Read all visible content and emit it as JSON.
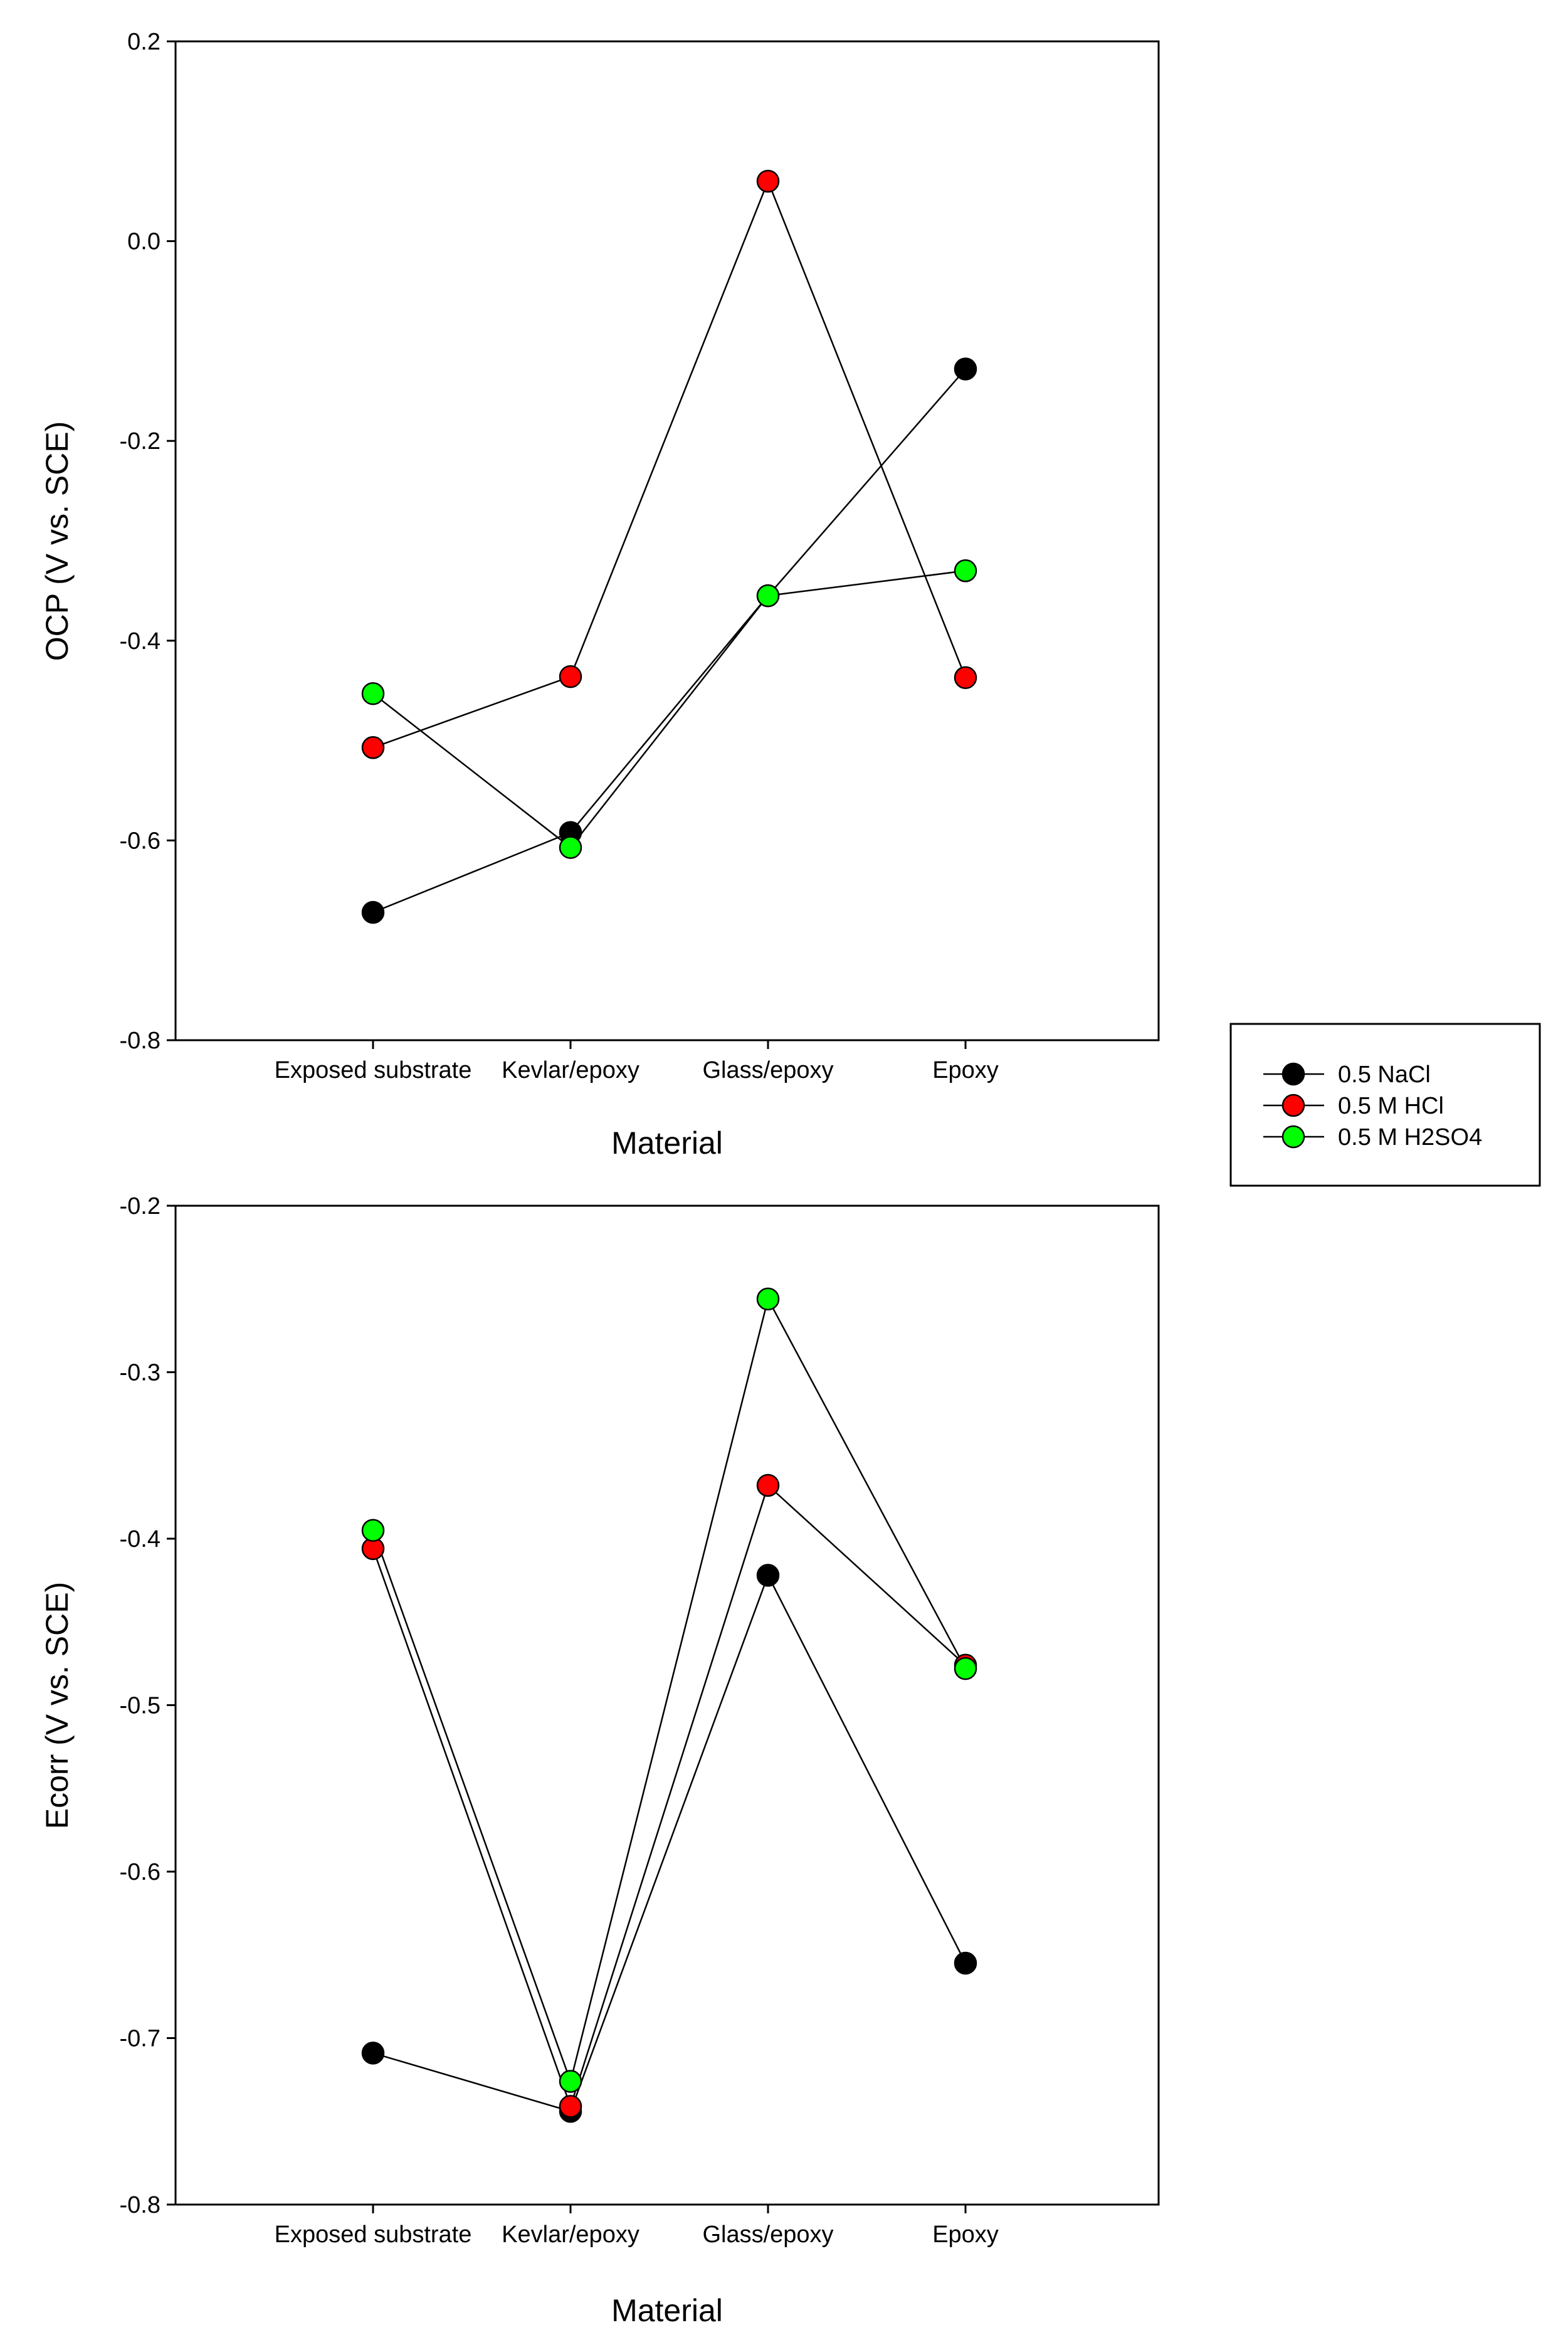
{
  "chart_data": [
    {
      "type": "line",
      "title": "",
      "xlabel": "Material",
      "ylabel": "OCP (V vs. SCE)",
      "categories": [
        "Exposed substrate",
        "Kevlar/epoxy",
        "Glass/epoxy",
        "Epoxy"
      ],
      "ylim": [
        -0.8,
        0.2
      ],
      "yticks": [
        "-0.8",
        "-0.6",
        "-0.4",
        "-0.2",
        "0.0",
        "0.2"
      ],
      "ytick_values": [
        -0.8,
        -0.6,
        -0.4,
        -0.2,
        0.0,
        0.2
      ],
      "series": [
        {
          "name": "0.5 NaCl",
          "color": "#000000",
          "values": [
            -0.672,
            -0.592,
            -0.355,
            -0.128
          ]
        },
        {
          "name": "0.5 M HCl",
          "color": "#ff0000",
          "values": [
            -0.507,
            -0.436,
            0.06,
            -0.437
          ]
        },
        {
          "name": "0.5 M H2SO4",
          "color": "#00ff00",
          "values": [
            -0.453,
            -0.607,
            -0.355,
            -0.33
          ]
        }
      ]
    },
    {
      "type": "line",
      "title": "",
      "xlabel": "Material",
      "ylabel": "Ecorr (V vs. SCE)",
      "categories": [
        "Exposed substrate",
        "Kevlar/epoxy",
        "Glass/epoxy",
        "Epoxy"
      ],
      "ylim": [
        -0.8,
        -0.2
      ],
      "yticks": [
        "-0.8",
        "-0.7",
        "-0.6",
        "-0.5",
        "-0.4",
        "-0.3",
        "-0.2"
      ],
      "ytick_values": [
        -0.8,
        -0.7,
        -0.6,
        -0.5,
        -0.4,
        -0.3,
        -0.2
      ],
      "series": [
        {
          "name": "0.5 NaCl",
          "color": "#000000",
          "values": [
            -0.709,
            -0.744,
            -0.422,
            -0.655
          ]
        },
        {
          "name": "0.5 M HCl",
          "color": "#ff0000",
          "values": [
            -0.406,
            -0.741,
            -0.368,
            -0.476
          ]
        },
        {
          "name": "0.5 M H2SO4",
          "color": "#00ff00",
          "values": [
            -0.395,
            -0.726,
            -0.256,
            -0.478
          ]
        }
      ]
    }
  ],
  "legend": {
    "placement": "right, between panels",
    "entries": [
      {
        "label": "0.5 NaCl",
        "color": "#000000"
      },
      {
        "label": "0.5 M HCl",
        "color": "#ff0000"
      },
      {
        "label": "0.5 M H2SO4",
        "color": "#00ff00"
      }
    ]
  }
}
